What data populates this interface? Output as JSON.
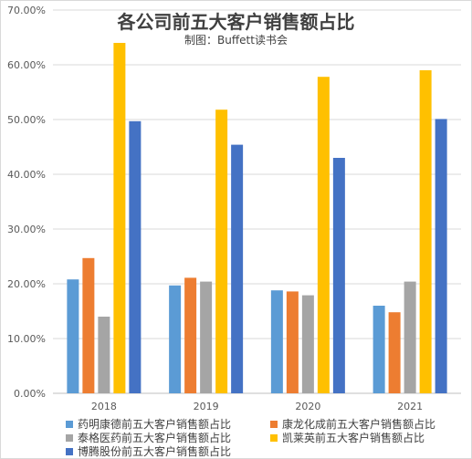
{
  "chart_data": {
    "type": "bar",
    "title": "各公司前五大客户销售额占比",
    "subtitle": "制图：Buffett读书会",
    "categories": [
      "2018",
      "2019",
      "2020",
      "2021"
    ],
    "series": [
      {
        "name": "药明康德前五大客户销售额占比",
        "color": "#5b9bd5",
        "values": [
          20.8,
          19.7,
          18.8,
          16.0
        ]
      },
      {
        "name": "康龙化成前五大客户销售额占比",
        "color": "#ed7d31",
        "values": [
          24.7,
          21.1,
          18.6,
          14.8
        ]
      },
      {
        "name": "泰格医药前五大客户销售额占比",
        "color": "#a5a5a5",
        "values": [
          14.0,
          20.4,
          17.9,
          20.4
        ]
      },
      {
        "name": "凯莱英前五大客户销售额占比",
        "color": "#ffc000",
        "values": [
          64.0,
          51.8,
          57.8,
          59.0
        ]
      },
      {
        "name": "博腾股份前五大客户销售额占比",
        "color": "#4472c4",
        "values": [
          49.7,
          45.4,
          43.0,
          50.1
        ]
      }
    ],
    "ylim": [
      0,
      70
    ],
    "yticks": [
      "0.00%",
      "10.00%",
      "20.00%",
      "30.00%",
      "40.00%",
      "50.00%",
      "60.00%",
      "70.00%"
    ],
    "grid": true,
    "legend": "bottom"
  }
}
